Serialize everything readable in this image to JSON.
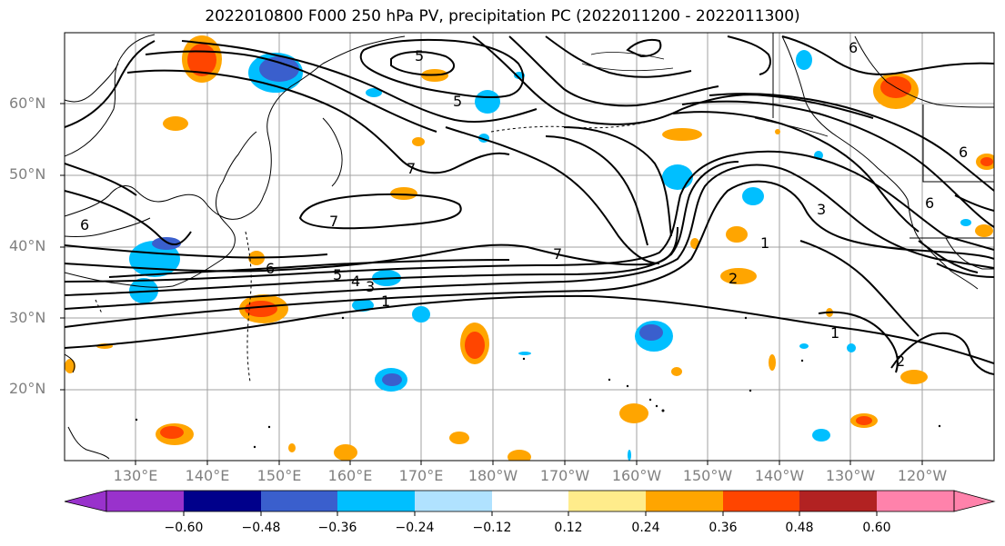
{
  "title": "2022010800 F000 250 hPa PV, precipitation PC (2022011200 - 2022011300)",
  "lat_labels": [
    "60°N",
    "50°N",
    "40°N",
    "30°N",
    "20°N"
  ],
  "lon_labels": [
    "130°E",
    "140°E",
    "150°E",
    "160°E",
    "170°E",
    "180°W",
    "170°W",
    "160°W",
    "150°W",
    "140°W",
    "130°W",
    "120°W"
  ],
  "contour_labels": [
    "5",
    "5",
    "7",
    "7",
    "7",
    "6",
    "6",
    "6",
    "5",
    "4",
    "3",
    "1",
    "1",
    "1",
    "2",
    "2",
    "3",
    "6",
    "6"
  ],
  "colorbar": {
    "ticks": [
      "−0.60",
      "−0.48",
      "−0.36",
      "−0.24",
      "−0.12",
      "0.12",
      "0.24",
      "0.36",
      "0.48",
      "0.60"
    ],
    "colors": [
      "#9932cc",
      "#00008b",
      "#3a5fcd",
      "#00bfff",
      "#b0e2ff",
      "#ffffff",
      "#ffec8b",
      "#ffa500",
      "#ff4500",
      "#b22222",
      "#ff82ab"
    ]
  }
}
